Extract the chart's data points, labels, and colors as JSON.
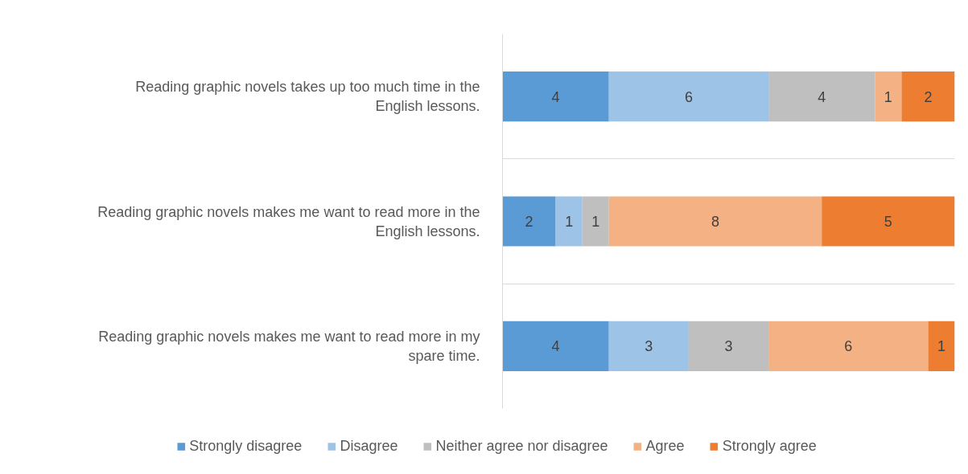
{
  "chart_data": {
    "type": "bar",
    "orientation": "horizontal",
    "stacked": true,
    "categories": [
      "Reading graphic novels takes up too much time in the English lessons.",
      "Reading graphic novels makes me want to read more in the English lessons.",
      "Reading graphic novels makes me want to read more in my spare time."
    ],
    "series": [
      {
        "name": "Strongly disagree",
        "color": "#5b9bd5",
        "values": [
          4,
          2,
          4
        ]
      },
      {
        "name": "Disagree",
        "color": "#9dc3e6",
        "values": [
          6,
          1,
          3
        ]
      },
      {
        "name": "Neither agree nor disagree",
        "color": "#bfbfbf",
        "values": [
          4,
          1,
          3
        ]
      },
      {
        "name": "Agree",
        "color": "#f4b183",
        "values": [
          1,
          8,
          6
        ]
      },
      {
        "name": "Strongly agree",
        "color": "#ed7d31",
        "values": [
          2,
          5,
          1
        ]
      }
    ],
    "xlim": [
      0,
      17
    ],
    "data_labels": true,
    "grid": "y",
    "legend": "bottom",
    "tick_labels": "y"
  }
}
